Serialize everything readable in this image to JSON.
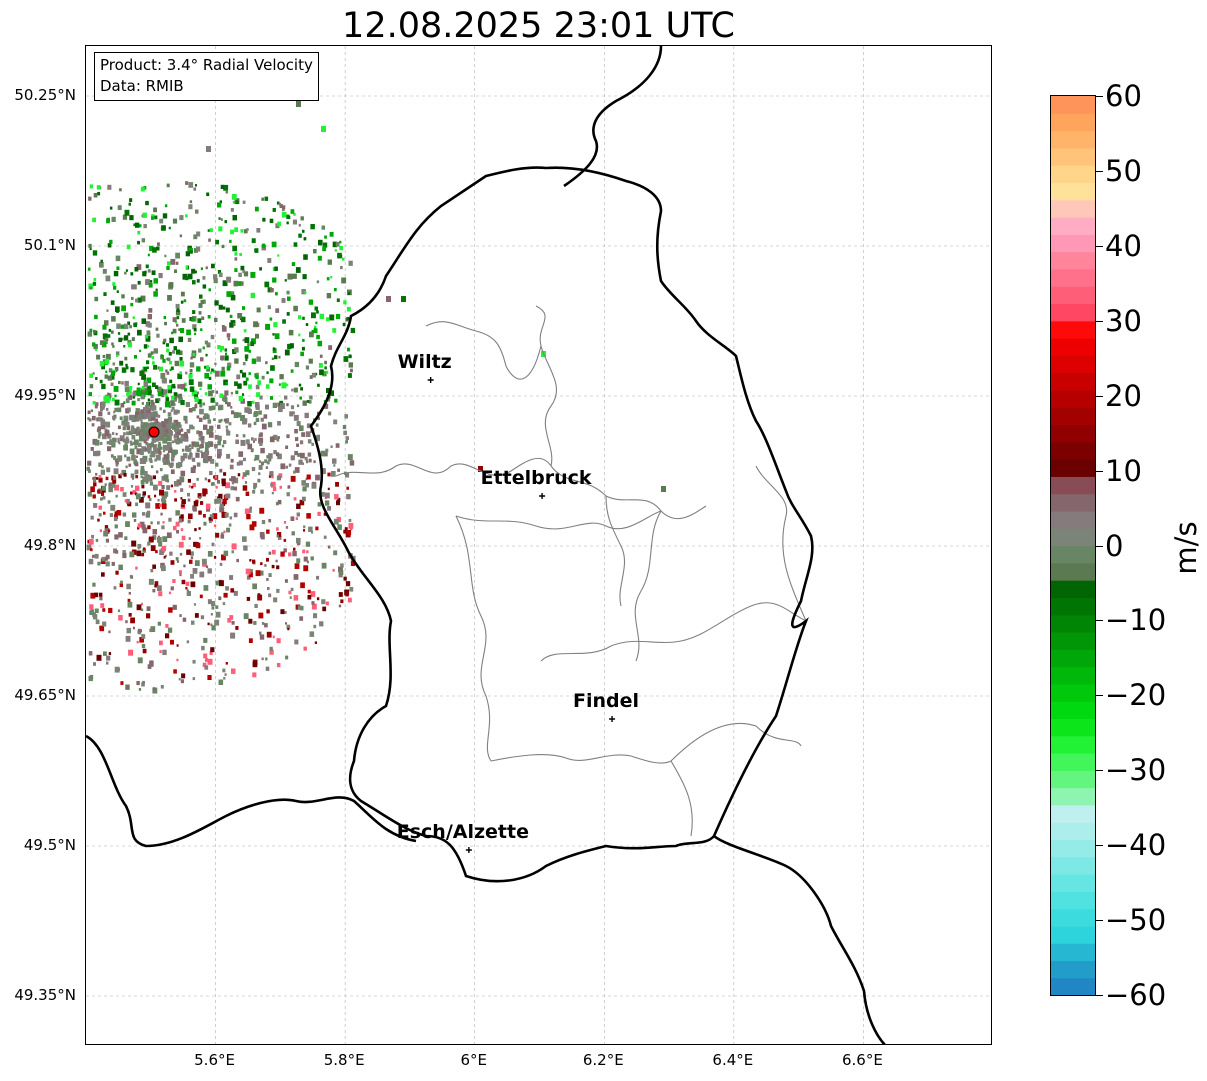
{
  "title": "12.08.2025 23:01 UTC",
  "info": {
    "product": "Product: 3.4° Radial Velocity",
    "source": "Data: RMIB"
  },
  "lat_ticks": [
    "50.25°N",
    "50.1°N",
    "49.95°N",
    "49.8°N",
    "49.65°N",
    "49.5°N",
    "49.35°N"
  ],
  "lon_ticks": [
    "5.6°E",
    "5.8°E",
    "6°E",
    "6.2°E",
    "6.4°E",
    "6.6°E"
  ],
  "cities": [
    {
      "name": "Wiltz",
      "lat": 49.966,
      "lon": 5.932
    },
    {
      "name": "Ettelbruck",
      "lat": 49.85,
      "lon": 6.104
    },
    {
      "name": "Findel",
      "lat": 49.627,
      "lon": 6.212
    },
    {
      "name": "Esch/Alzette",
      "lat": 49.496,
      "lon": 5.991
    }
  ],
  "radar_site": {
    "lat": 49.914,
    "lon": 5.505,
    "color": "#ff0000"
  },
  "map_extent": {
    "lon": [
      5.4,
      6.8
    ],
    "lat": [
      49.3,
      50.3
    ]
  },
  "colorbar": {
    "unit": "m/s",
    "range": [
      -60,
      60
    ],
    "ticks": [
      "60",
      "50",
      "40",
      "30",
      "20",
      "10",
      "0",
      "−10",
      "−20",
      "−30",
      "−40",
      "−50",
      "−60"
    ],
    "colors": [
      "#2186c4",
      "#229dc9",
      "#26b8d3",
      "#2dd4dc",
      "#3cdcde",
      "#4fe2e0",
      "#65e6e2",
      "#7de8e5",
      "#95ebe8",
      "#abeeec",
      "#bff0ef",
      "#8ef5b0",
      "#63f57e",
      "#42f55a",
      "#22f235",
      "#0de51b",
      "#00d90f",
      "#00c90c",
      "#00b80a",
      "#00a708",
      "#009606",
      "#008505",
      "#007504",
      "#006503",
      "#5c7a52",
      "#688663",
      "#7b8577",
      "#857a7c",
      "#85666c",
      "#874c55",
      "#6b0000",
      "#7d0000",
      "#900000",
      "#a30000",
      "#b60000",
      "#c90000",
      "#dc0000",
      "#ef0000",
      "#ff0a0a",
      "#ff4762",
      "#ff5e78",
      "#ff718a",
      "#ff849c",
      "#ff98b6",
      "#ffacc4",
      "#ffc7b8",
      "#ffe19a",
      "#ffd58a",
      "#ffc47a",
      "#ffb46a",
      "#ffa45c",
      "#ff945a"
    ]
  },
  "colors": {
    "border": "#000000",
    "canton_lines": "#808080",
    "grid": "#b0b0b0"
  }
}
